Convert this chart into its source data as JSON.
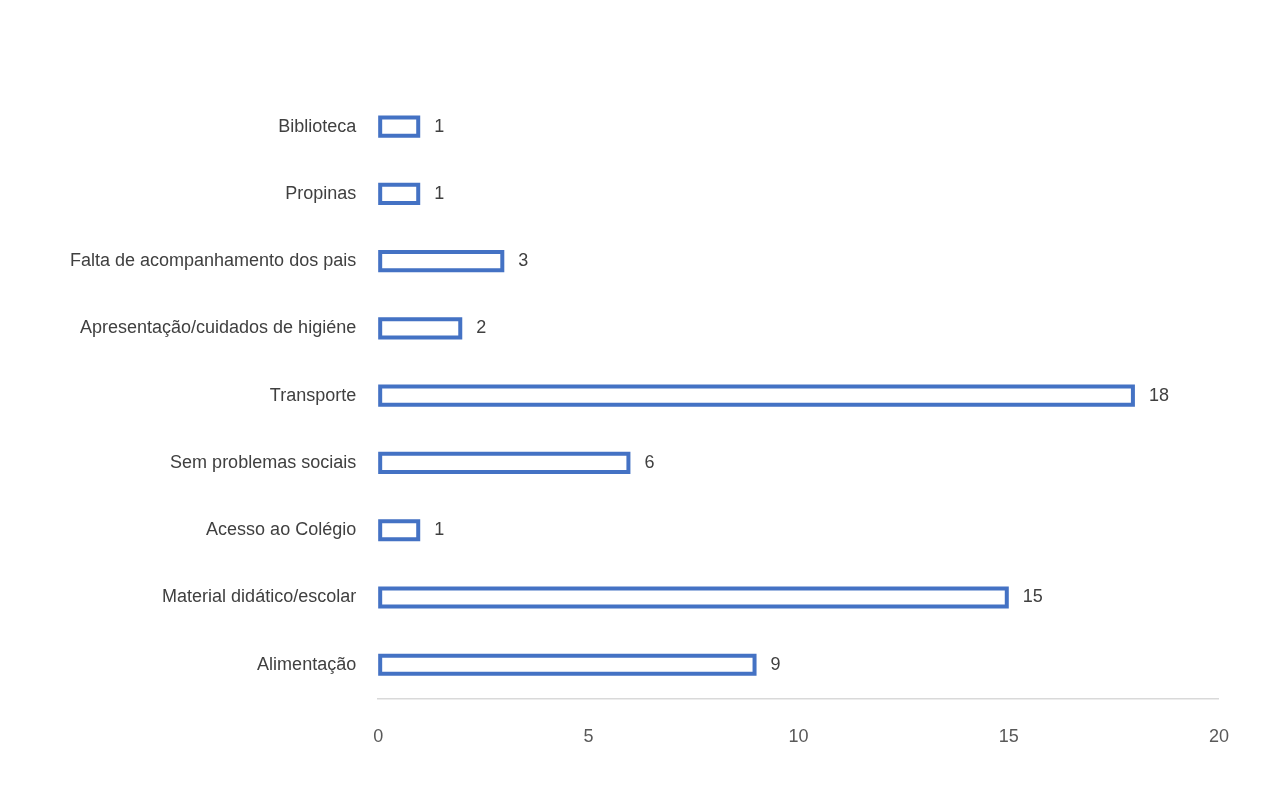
{
  "chart_data": {
    "type": "bar",
    "orientation": "horizontal",
    "categories": [
      "Biblioteca",
      "Propinas",
      "Falta de acompanhamento dos pais",
      "Apresentação/cuidados de higiéne",
      "Transporte",
      "Sem problemas sociais",
      "Acesso ao Colégio",
      "Material didático/escolar",
      "Alimentação"
    ],
    "values": [
      1,
      1,
      3,
      2,
      18,
      6,
      1,
      15,
      9
    ],
    "color": "#4472c4",
    "xlim": [
      0,
      20
    ],
    "xticks": [
      0,
      5,
      10,
      15,
      20
    ],
    "grid": false,
    "legend": false,
    "data_labels": true
  }
}
